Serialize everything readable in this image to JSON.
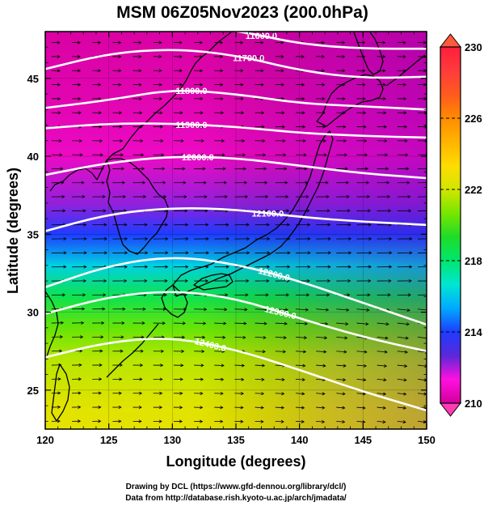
{
  "title": "MSM 06Z05Nov2023 (200.0hPa)",
  "credits": {
    "line1": "Drawing by DCL (https://www.gfd-dennou.org/library/dcl/)",
    "line2": "Data from http://database.rish.kyoto-u.ac.jp/arch/jmadata/"
  },
  "colors": {
    "shading_stops": [
      "#e6007e",
      "#ff00c8",
      "#ff00e0",
      "#3c28d2",
      "#1e5aff",
      "#00d2e6",
      "#1ee6a0",
      "#32e164"
    ],
    "contour": "#ffffff",
    "coast": "#000000",
    "vector": "#000000"
  },
  "chart_data": {
    "type": "heatmap",
    "title": "MSM 06Z05Nov2023 (200.0hPa)",
    "xlabel": "Longitude (degrees)",
    "ylabel": "Latitude  (degrees)",
    "xlim": [
      120,
      150
    ],
    "ylim": [
      22.5,
      48
    ],
    "x_ticks": [
      120,
      125,
      130,
      135,
      140,
      145,
      150
    ],
    "y_ticks": [
      25,
      30,
      35,
      40,
      45
    ],
    "colorbar": {
      "min": 210,
      "max": 230,
      "ticks": [
        210,
        214,
        218,
        222,
        226,
        230
      ],
      "tick_labels": [
        "210",
        "214",
        "218",
        "222",
        "226",
        "230"
      ],
      "colors": [
        "#d2009a",
        "#ff10e0",
        "#5a28d8",
        "#1e3cff",
        "#00aaff",
        "#00e6d2",
        "#00e66e",
        "#1edc28",
        "#78e600",
        "#d2e600",
        "#ffdc00",
        "#ffb400",
        "#ff8c00",
        "#ff5a1e",
        "#ff3c3c",
        "#ff1e3c"
      ]
    },
    "shading": {
      "variable": "temperature (K)",
      "field": [
        {
          "lat": 48,
          "value": 210.2
        },
        {
          "lat": 44,
          "value": 210.4
        },
        {
          "lat": 40,
          "value": 210.8
        },
        {
          "lat": 37,
          "value": 212.2
        },
        {
          "lat": 35,
          "value": 214.0
        },
        {
          "lat": 33,
          "value": 216.2
        },
        {
          "lat": 31,
          "value": 218.6
        },
        {
          "lat": 29,
          "value": 220.4
        },
        {
          "lat": 27,
          "value": 221.6
        },
        {
          "lat": 24,
          "value": 222.4
        },
        {
          "lat": 22.5,
          "value": 222.6
        }
      ]
    },
    "contours": [
      {
        "label": "11600.0",
        "points": [
          [
            120,
            48.2
          ],
          [
            130,
            48.4
          ],
          [
            135,
            48.1
          ],
          [
            140,
            47.2
          ],
          [
            145,
            46.9
          ],
          [
            150,
            46.9
          ]
        ]
      },
      {
        "label": "11700.0",
        "points": [
          [
            120,
            45.6
          ],
          [
            125,
            46.6
          ],
          [
            130,
            46.9
          ],
          [
            135,
            46.5
          ],
          [
            140,
            45.5
          ],
          [
            145,
            45.0
          ],
          [
            150,
            45.1
          ]
        ]
      },
      {
        "label": "11800.0",
        "points": [
          [
            120,
            43.1
          ],
          [
            125,
            43.6
          ],
          [
            130,
            44.3
          ],
          [
            135,
            44.0
          ],
          [
            140,
            43.4
          ],
          [
            145,
            43.2
          ],
          [
            150,
            43.0
          ]
        ]
      },
      {
        "label": "11900.0",
        "points": [
          [
            120,
            41.8
          ],
          [
            125,
            42.1
          ],
          [
            130,
            42.1
          ],
          [
            135,
            41.9
          ],
          [
            140,
            41.5
          ],
          [
            145,
            41.3
          ],
          [
            150,
            41.2
          ]
        ]
      },
      {
        "label": "12000.0",
        "points": [
          [
            120,
            38.8
          ],
          [
            125,
            39.6
          ],
          [
            130,
            40.0
          ],
          [
            135,
            39.9
          ],
          [
            140,
            39.4
          ],
          [
            145,
            38.9
          ],
          [
            150,
            38.6
          ]
        ]
      },
      {
        "label": "12100.0",
        "points": [
          [
            120,
            35.2
          ],
          [
            125,
            36.3
          ],
          [
            130,
            36.7
          ],
          [
            135,
            36.6
          ],
          [
            140,
            36.1
          ],
          [
            145,
            35.8
          ],
          [
            150,
            35.6
          ]
        ]
      },
      {
        "label": "12200.0",
        "points": [
          [
            120,
            31.6
          ],
          [
            125,
            33.0
          ],
          [
            130,
            33.6
          ],
          [
            135,
            33.1
          ],
          [
            140,
            32.0
          ],
          [
            145,
            30.6
          ],
          [
            150,
            29.2
          ]
        ]
      },
      {
        "label": "12300.0",
        "points": [
          [
            120,
            29.9
          ],
          [
            125,
            31.0
          ],
          [
            130,
            31.4
          ],
          [
            135,
            30.9
          ],
          [
            140,
            29.6
          ],
          [
            145,
            28.4
          ],
          [
            150,
            27.5
          ]
        ]
      },
      {
        "label": "12400.0",
        "points": [
          [
            120,
            27.1
          ],
          [
            125,
            28.1
          ],
          [
            130,
            28.4
          ],
          [
            135,
            27.6
          ],
          [
            140,
            26.3
          ],
          [
            145,
            24.9
          ],
          [
            150,
            23.7
          ]
        ]
      }
    ]
  }
}
